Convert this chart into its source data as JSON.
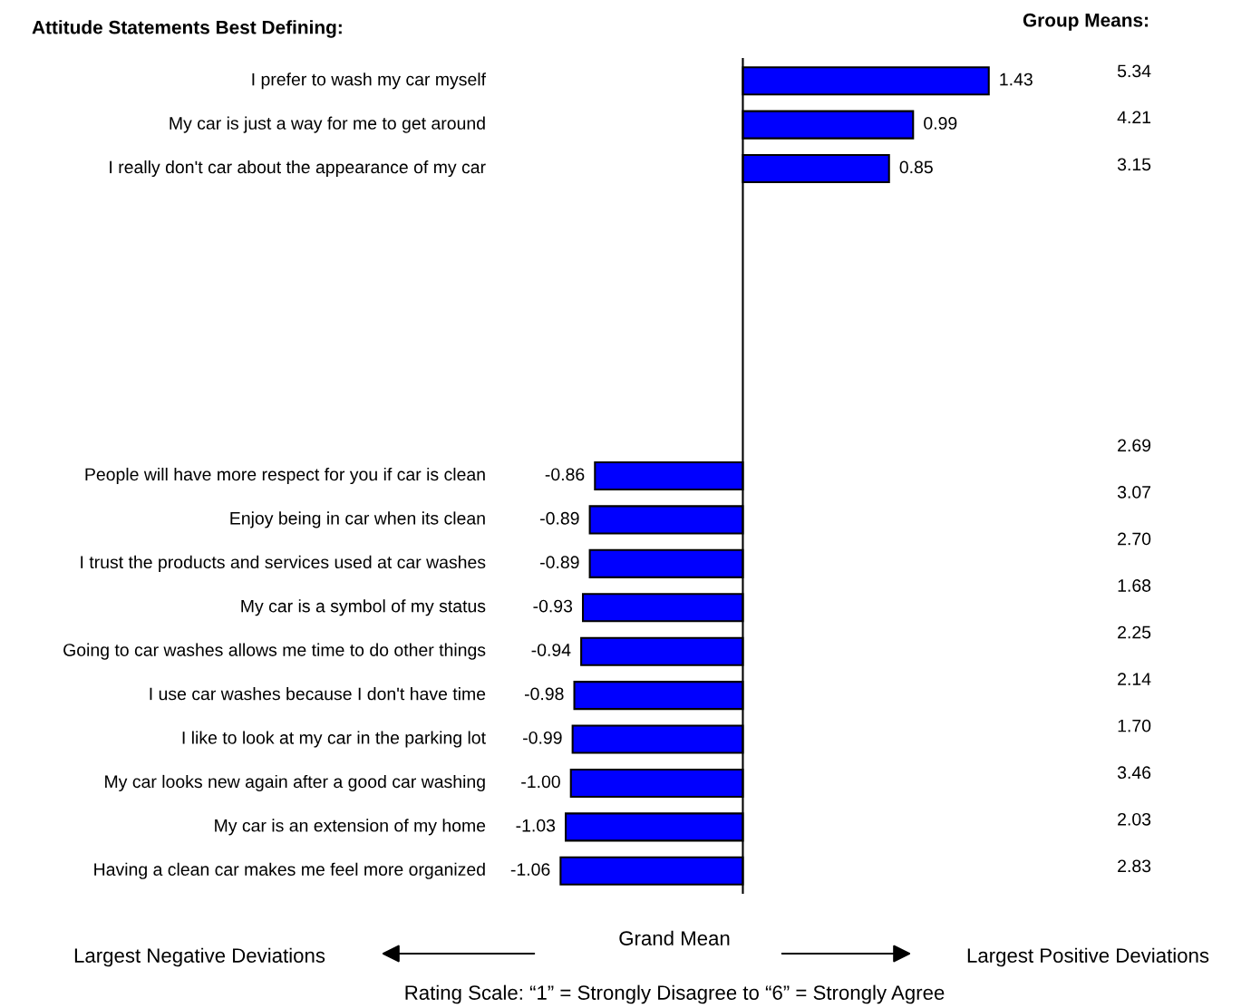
{
  "chart_data": {
    "type": "bar",
    "orientation": "horizontal",
    "title": "Attitude Statements Best Defining:",
    "categories": [
      "I prefer to wash my car myself",
      "My car is just a way for me to get around",
      "I really don't car about the appearance of my car",
      null,
      null,
      null,
      null,
      null,
      null,
      "People will have more respect for you if car is clean",
      "Enjoy being in car when its clean",
      "I trust the products and services used at car washes",
      "My car is a symbol of my status",
      "Going to car washes allows me time to do other things",
      "I use car washes because I don't have time",
      "I like to look at my car in the parking lot",
      "My car looks new again after a good car washing",
      "My car is an extension of my home",
      "Having a clean car makes me feel more organized"
    ],
    "values": [
      1.43,
      0.99,
      0.85,
      null,
      null,
      null,
      null,
      null,
      null,
      -0.86,
      -0.89,
      -0.89,
      -0.93,
      -0.94,
      -0.98,
      -0.99,
      -1.0,
      -1.03,
      -1.06
    ],
    "value_labels": [
      "1.43",
      "0.99",
      "0.85",
      null,
      null,
      null,
      null,
      null,
      null,
      "-0.86",
      "-0.89",
      "-0.89",
      "-0.93",
      "-0.94",
      "-0.98",
      "-0.99",
      "-1.00",
      "-1.03",
      "-1.06"
    ],
    "color": "#0000ff",
    "annotations": [
      "Group Means:",
      "5.34",
      "4.21",
      "3.15",
      "2.69",
      "3.07",
      "2.70",
      "1.68",
      "2.25",
      "2.14",
      "1.70",
      "3.46",
      "2.03",
      "2.83",
      "Grand Mean",
      "Largest Negative Deviations",
      "Largest Positive Deviations",
      "Rating Scale: “1” = Strongly Disagree to “6” = Strongly Agree"
    ],
    "data_labels": false
  }
}
